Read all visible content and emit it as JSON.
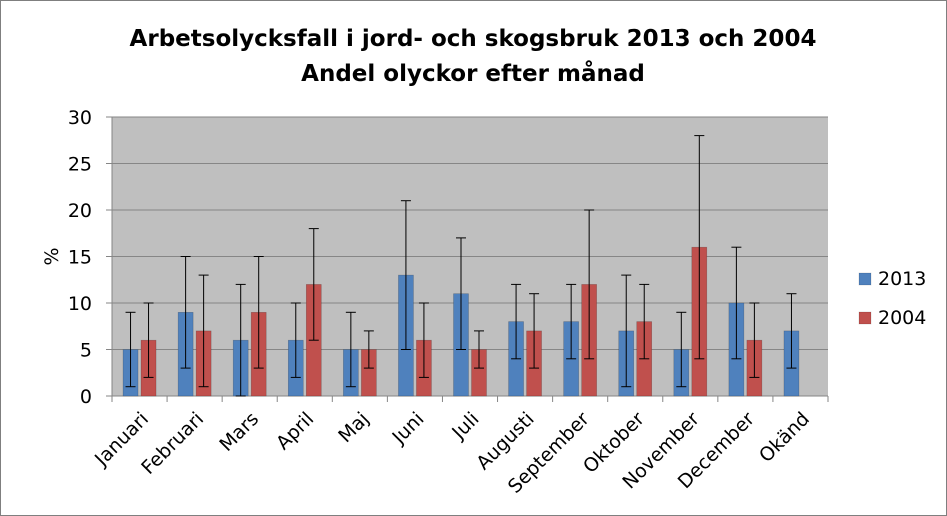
{
  "chart_data": {
    "type": "bar",
    "title": "Arbetsolycksfall i jord- och skogsbruk 2013 och 2004",
    "subtitle": "Andel olyckor efter månad",
    "xlabel": "",
    "ylabel": "%",
    "ylim": [
      0,
      30
    ],
    "yticks": [
      "0",
      "5",
      "10",
      "15",
      "20",
      "25",
      "30"
    ],
    "grid": true,
    "legend": "right",
    "categories": [
      "Januari",
      "Februari",
      "Mars",
      "April",
      "Maj",
      "Juni",
      "Juli",
      "Augusti",
      "September",
      "Oktober",
      "November",
      "December",
      "Okänd"
    ],
    "series": [
      {
        "name": "2013",
        "color": "#4f81bd",
        "values": [
          5,
          9,
          6,
          6,
          5,
          13,
          11,
          8,
          8,
          7,
          5,
          10,
          7
        ],
        "error_low": [
          1,
          3,
          0,
          2,
          1,
          5,
          5,
          4,
          4,
          1,
          1,
          4,
          3
        ],
        "error_high": [
          9,
          15,
          12,
          10,
          9,
          21,
          17,
          12,
          12,
          13,
          9,
          16,
          11
        ]
      },
      {
        "name": "2004",
        "color": "#c0504d",
        "values": [
          6,
          7,
          9,
          12,
          5,
          6,
          5,
          7,
          12,
          8,
          16,
          6,
          null
        ],
        "error_low": [
          2,
          1,
          3,
          6,
          3,
          2,
          3,
          3,
          4,
          4,
          4,
          2,
          null
        ],
        "error_high": [
          10,
          13,
          15,
          18,
          7,
          10,
          7,
          11,
          20,
          12,
          28,
          10,
          null
        ]
      }
    ]
  }
}
